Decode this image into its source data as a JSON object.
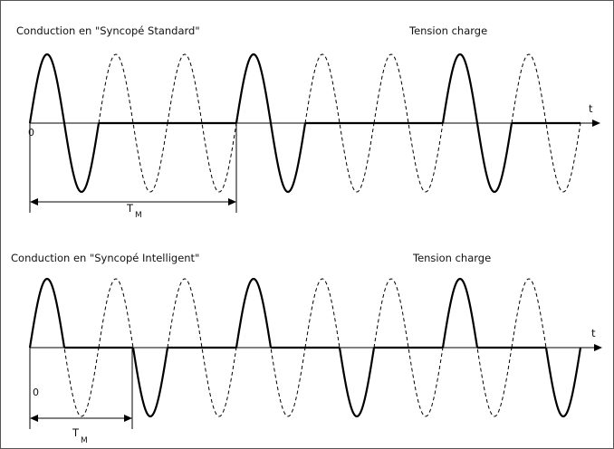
{
  "panels": [
    {
      "title": "Conduction en \"Syncopé Standard\"",
      "right_label": "Tension charge",
      "axis_label": "t",
      "origin_label": "0",
      "period_label": "T",
      "period_subscript": "M",
      "cycles": [
        true,
        false,
        false,
        true,
        false,
        false,
        true,
        false
      ],
      "solid_style": "full-cycle"
    },
    {
      "title": "Conduction en \"Syncopé Intelligent\"",
      "right_label": "Tension charge",
      "axis_label": "t",
      "origin_label": "0",
      "period_label": "T",
      "period_subscript": "M",
      "cycles": [
        true,
        false,
        false,
        true,
        false,
        false,
        true,
        false
      ],
      "solid_style": "split-half-cycle"
    }
  ],
  "colors": {
    "line": "#000000",
    "frame": "#555555"
  }
}
